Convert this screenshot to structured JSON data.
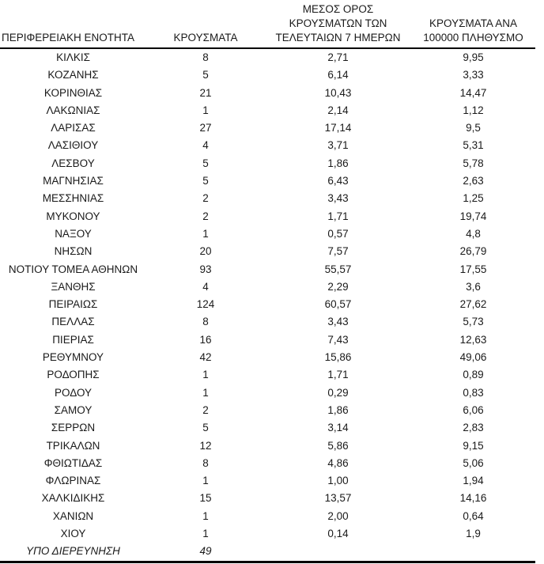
{
  "colors": {
    "text": "#1a1a1a",
    "rule": "#000000",
    "background": "#ffffff"
  },
  "chart_data": {
    "type": "table",
    "title": "",
    "columns": [
      "ΠΕΡΙΦΕΡΕΙΑΚΗ ΕΝΟΤΗΤΑ",
      "ΚΡΟΥΣΜΑΤΑ",
      "ΜΕΣΟΣ ΟΡΟΣ ΚΡΟΥΣΜΑΤΩΝ ΤΩΝ ΤΕΛΕΥΤΑΙΩΝ 7 ΗΜΕΡΩΝ",
      "ΚΡΟΥΣΜΑΤΑ ΑΝΑ 100000 ΠΛΗΘΥΣΜΟ"
    ],
    "header_lines": {
      "col1": [
        "ΠΕΡΙΦΕΡΕΙΑΚΗ ΕΝΟΤΗΤΑ"
      ],
      "col2": [
        "ΚΡΟΥΣΜΑΤΑ"
      ],
      "col3": [
        "ΜΕΣΟΣ ΟΡΟΣ",
        "ΚΡΟΥΣΜΑΤΩΝ ΤΩΝ",
        "ΤΕΛΕΥΤΑΙΩΝ 7 ΗΜΕΡΩΝ"
      ],
      "col4": [
        "ΚΡΟΥΣΜΑΤΑ ΑΝΑ",
        "100000 ΠΛΗΘΥΣΜΟ"
      ]
    },
    "rows": [
      [
        "ΚΙΛΚΙΣ",
        "8",
        "2,71",
        "9,95"
      ],
      [
        "ΚΟΖΑΝΗΣ",
        "5",
        "6,14",
        "3,33"
      ],
      [
        "ΚΟΡΙΝΘΙΑΣ",
        "21",
        "10,43",
        "14,47"
      ],
      [
        "ΛΑΚΩΝΙΑΣ",
        "1",
        "2,14",
        "1,12"
      ],
      [
        "ΛΑΡΙΣΑΣ",
        "27",
        "17,14",
        "9,5"
      ],
      [
        "ΛΑΣΙΘΙΟΥ",
        "4",
        "3,71",
        "5,31"
      ],
      [
        "ΛΕΣΒΟΥ",
        "5",
        "1,86",
        "5,78"
      ],
      [
        "ΜΑΓΝΗΣΙΑΣ",
        "5",
        "6,43",
        "2,63"
      ],
      [
        "ΜΕΣΣΗΝΙΑΣ",
        "2",
        "3,43",
        "1,25"
      ],
      [
        "ΜΥΚΟΝΟΥ",
        "2",
        "1,71",
        "19,74"
      ],
      [
        "ΝΑΞΟΥ",
        "1",
        "0,57",
        "4,8"
      ],
      [
        "ΝΗΣΩΝ",
        "20",
        "7,57",
        "26,79"
      ],
      [
        "ΝΟΤΙΟΥ ΤΟΜΕΑ ΑΘΗΝΩΝ",
        "93",
        "55,57",
        "17,55"
      ],
      [
        "ΞΑΝΘΗΣ",
        "4",
        "2,29",
        "3,6"
      ],
      [
        "ΠΕΙΡΑΙΩΣ",
        "124",
        "60,57",
        "27,62"
      ],
      [
        "ΠΕΛΛΑΣ",
        "8",
        "3,43",
        "5,73"
      ],
      [
        "ΠΙΕΡΙΑΣ",
        "16",
        "7,43",
        "12,63"
      ],
      [
        "ΡΕΘΥΜΝΟΥ",
        "42",
        "15,86",
        "49,06"
      ],
      [
        "ΡΟΔΟΠΗΣ",
        "1",
        "1,71",
        "0,89"
      ],
      [
        "ΡΟΔΟΥ",
        "1",
        "0,29",
        "0,83"
      ],
      [
        "ΣΑΜΟΥ",
        "2",
        "1,86",
        "6,06"
      ],
      [
        "ΣΕΡΡΩΝ",
        "5",
        "3,14",
        "2,83"
      ],
      [
        "ΤΡΙΚΑΛΩΝ",
        "12",
        "5,86",
        "9,15"
      ],
      [
        "ΦΘΙΩΤΙΔΑΣ",
        "8",
        "4,86",
        "5,06"
      ],
      [
        "ΦΛΩΡΙΝΑΣ",
        "1",
        "1,00",
        "1,94"
      ],
      [
        "ΧΑΛΚΙΔΙΚΗΣ",
        "15",
        "13,57",
        "14,16"
      ],
      [
        "ΧΑΝΙΩΝ",
        "1",
        "2,00",
        "0,64"
      ],
      [
        "ΧΙΟΥ",
        "1",
        "0,14",
        "1,9"
      ]
    ],
    "footer_row": [
      "ΥΠΟ ΔΙΕΡΕΥΝΗΣΗ",
      "49",
      "",
      ""
    ]
  }
}
